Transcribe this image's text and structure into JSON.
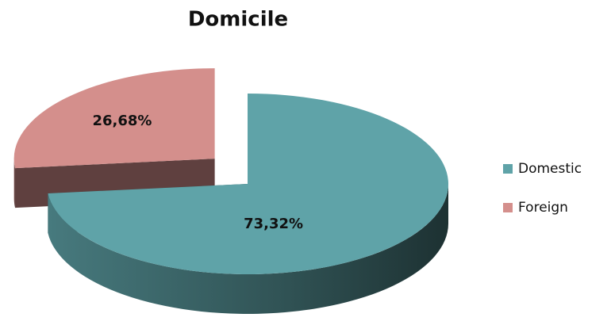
{
  "chart_data": {
    "type": "pie",
    "title": "Domicile",
    "categories": [
      "Domestic",
      "Foreign"
    ],
    "values": [
      73.32,
      26.68
    ],
    "value_labels": [
      "73,32%",
      "26,68%"
    ],
    "colors": [
      "#5fa3a8",
      "#d48f8c"
    ],
    "legend": "right"
  }
}
